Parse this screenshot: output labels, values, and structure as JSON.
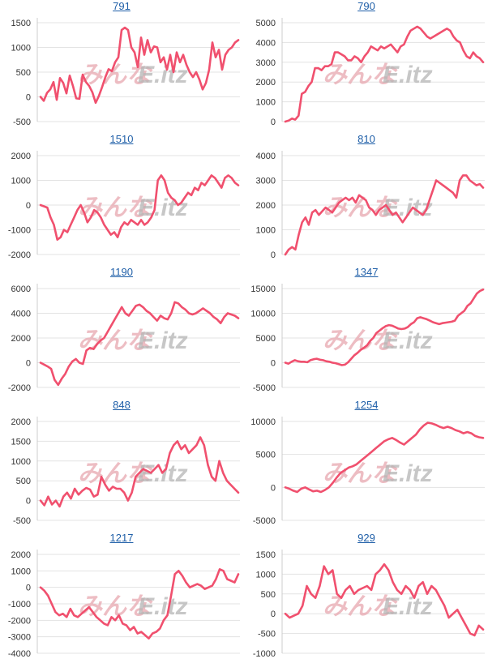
{
  "page": {
    "background": "#ffffff"
  },
  "colors": {
    "series": "#f0506e",
    "title_link": "#1f5fa8"
  },
  "watermark": {
    "part1": "みんな",
    "part2": "E.itz"
  },
  "chart_data": [
    {
      "type": "line",
      "title": "791",
      "xlabel": "",
      "ylabel": "",
      "yticks": [
        1500,
        1000,
        500,
        0,
        -500
      ],
      "ylim": [
        -500,
        1500
      ],
      "y": [
        0,
        -80,
        80,
        150,
        300,
        -60,
        380,
        280,
        70,
        430,
        220,
        -30,
        -40,
        450,
        300,
        220,
        90,
        -120,
        20,
        200,
        400,
        560,
        520,
        700,
        800,
        1350,
        1400,
        1350,
        1000,
        900,
        600,
        1200,
        850,
        1150,
        900,
        1020,
        1000,
        700,
        800,
        550,
        850,
        500,
        900,
        700,
        850,
        650,
        500,
        400,
        500,
        350,
        150,
        280,
        550,
        1100,
        800,
        950,
        550,
        850,
        950,
        1000,
        1100,
        1150
      ]
    },
    {
      "type": "line",
      "title": "790",
      "xlabel": "",
      "ylabel": "",
      "yticks": [
        5000,
        4000,
        3000,
        2000,
        1000,
        0
      ],
      "ylim": [
        0,
        5000
      ],
      "y": [
        0,
        50,
        150,
        100,
        300,
        1400,
        1500,
        1800,
        2000,
        2700,
        2700,
        2600,
        2800,
        2800,
        2900,
        3500,
        3500,
        3400,
        3300,
        3100,
        3100,
        3300,
        3200,
        3000,
        3300,
        3500,
        3800,
        3700,
        3600,
        3800,
        3700,
        3800,
        3900,
        3700,
        3500,
        3800,
        3900,
        4300,
        4600,
        4700,
        4800,
        4700,
        4500,
        4300,
        4200,
        4300,
        4400,
        4500,
        4600,
        4700,
        4600,
        4300,
        4100,
        4000,
        3600,
        3300,
        3200,
        3500,
        3300,
        3200,
        3000
      ]
    },
    {
      "type": "line",
      "title": "1510",
      "xlabel": "",
      "ylabel": "",
      "yticks": [
        2000,
        1000,
        0,
        -1000,
        -2000
      ],
      "ylim": [
        -2000,
        2000
      ],
      "y": [
        0,
        -50,
        -100,
        -500,
        -800,
        -1400,
        -1300,
        -1000,
        -1100,
        -800,
        -500,
        -200,
        0,
        -300,
        -700,
        -500,
        -200,
        -300,
        -500,
        -800,
        -1000,
        -1200,
        -1100,
        -1300,
        -900,
        -700,
        -800,
        -600,
        -700,
        -800,
        -600,
        -800,
        -700,
        -500,
        -200,
        1000,
        1200,
        1000,
        500,
        300,
        200,
        0,
        100,
        300,
        500,
        400,
        700,
        600,
        900,
        800,
        1000,
        1200,
        1100,
        900,
        700,
        1100,
        1200,
        1100,
        900,
        800
      ]
    },
    {
      "type": "line",
      "title": "810",
      "xlabel": "",
      "ylabel": "",
      "yticks": [
        4000,
        3000,
        2000,
        1000,
        0
      ],
      "ylim": [
        0,
        4000
      ],
      "y": [
        0,
        200,
        300,
        200,
        800,
        1300,
        1500,
        1200,
        1700,
        1800,
        1600,
        1750,
        1900,
        1800,
        1700,
        1900,
        2100,
        2200,
        2300,
        2200,
        2300,
        2100,
        2400,
        2300,
        2200,
        1900,
        1800,
        1600,
        1800,
        1900,
        2000,
        1800,
        1600,
        1700,
        1500,
        1300,
        1500,
        1700,
        1900,
        1800,
        1700,
        1600,
        1800,
        2200,
        2600,
        3000,
        2900,
        2800,
        2700,
        2600,
        2500,
        2300,
        3000,
        3200,
        3200,
        3000,
        2900,
        2800,
        2850,
        2700
      ]
    },
    {
      "type": "line",
      "title": "1190",
      "xlabel": "",
      "ylabel": "",
      "yticks": [
        6000,
        4000,
        2000,
        0,
        -2000
      ],
      "ylim": [
        -2000,
        6000
      ],
      "y": [
        0,
        -150,
        -300,
        -500,
        -1400,
        -1800,
        -1300,
        -900,
        -300,
        100,
        300,
        0,
        -100,
        1000,
        1200,
        1100,
        1500,
        1800,
        2000,
        2500,
        3000,
        3500,
        4000,
        4500,
        4000,
        3800,
        4200,
        4600,
        4700,
        4500,
        4200,
        4000,
        3700,
        3400,
        3800,
        3600,
        3500,
        4000,
        4900,
        4800,
        4500,
        4300,
        4000,
        3900,
        4000,
        4200,
        4400,
        4200,
        4000,
        3700,
        3500,
        3200,
        3700,
        4000,
        3900,
        3800,
        3600
      ]
    },
    {
      "type": "line",
      "title": "1347",
      "xlabel": "",
      "ylabel": "",
      "yticks": [
        15000,
        10000,
        5000,
        0,
        -5000
      ],
      "ylim": [
        -5000,
        15000
      ],
      "y": [
        0,
        -200,
        200,
        500,
        300,
        200,
        200,
        100,
        500,
        700,
        800,
        600,
        500,
        300,
        200,
        0,
        -100,
        -300,
        -500,
        -400,
        100,
        800,
        1500,
        2000,
        2600,
        3000,
        3500,
        4400,
        5000,
        6000,
        6500,
        7000,
        7400,
        7600,
        7500,
        7200,
        6900,
        6800,
        6900,
        7200,
        7800,
        8200,
        9000,
        9200,
        9000,
        8800,
        8500,
        8200,
        8000,
        7800,
        8000,
        8100,
        8200,
        8300,
        8500,
        9500,
        10000,
        10500,
        11500,
        12000,
        13000,
        14000,
        14500,
        14800
      ]
    },
    {
      "type": "line",
      "title": "848",
      "xlabel": "",
      "ylabel": "",
      "yticks": [
        2000,
        1500,
        1000,
        500,
        0,
        -500
      ],
      "ylim": [
        -500,
        2000
      ],
      "y": [
        0,
        -120,
        100,
        -100,
        0,
        -150,
        100,
        200,
        50,
        300,
        150,
        250,
        320,
        280,
        100,
        150,
        600,
        400,
        250,
        350,
        300,
        300,
        200,
        0,
        200,
        600,
        700,
        800,
        750,
        700,
        800,
        900,
        700,
        800,
        1200,
        1400,
        1500,
        1300,
        1400,
        1200,
        1300,
        1400,
        1600,
        1400,
        900,
        600,
        500,
        1000,
        700,
        500,
        400,
        300,
        200
      ]
    },
    {
      "type": "line",
      "title": "1254",
      "xlabel": "",
      "ylabel": "",
      "yticks": [
        10000,
        5000,
        0,
        -5000
      ],
      "ylim": [
        -5000,
        10000
      ],
      "y": [
        0,
        -200,
        -500,
        -700,
        -200,
        0,
        -300,
        -600,
        -500,
        -700,
        -400,
        0,
        700,
        1500,
        2200,
        2600,
        3000,
        3200,
        3500,
        4000,
        4500,
        5000,
        5500,
        6000,
        6500,
        7000,
        7300,
        7500,
        7200,
        6800,
        6500,
        7000,
        7500,
        8000,
        8800,
        9400,
        9800,
        9700,
        9500,
        9200,
        9000,
        9200,
        9000,
        8700,
        8500,
        8200,
        8400,
        8200,
        7800,
        7600,
        7500
      ]
    },
    {
      "type": "line",
      "title": "1217",
      "xlabel": "",
      "ylabel": "",
      "yticks": [
        2000,
        1000,
        0,
        -1000,
        -2000,
        -3000,
        -4000
      ],
      "ylim": [
        -4000,
        2000
      ],
      "y": [
        0,
        -200,
        -500,
        -1000,
        -1500,
        -1700,
        -1600,
        -1800,
        -1300,
        -1700,
        -1800,
        -1600,
        -1400,
        -1200,
        -1500,
        -1800,
        -2000,
        -2200,
        -2300,
        -1800,
        -2000,
        -1700,
        -2200,
        -2300,
        -2600,
        -2400,
        -2800,
        -2700,
        -2900,
        -3100,
        -2800,
        -2700,
        -2500,
        -2000,
        -1700,
        -500,
        800,
        1000,
        700,
        300,
        0,
        100,
        200,
        100,
        -100,
        0,
        100,
        500,
        1100,
        1000,
        500,
        400,
        300,
        800
      ]
    },
    {
      "type": "line",
      "title": "929",
      "xlabel": "",
      "ylabel": "",
      "yticks": [
        1500,
        1000,
        500,
        0,
        -500,
        -1000
      ],
      "ylim": [
        -1000,
        1500
      ],
      "y": [
        0,
        -100,
        -50,
        0,
        200,
        700,
        500,
        400,
        700,
        1200,
        1000,
        1100,
        500,
        400,
        600,
        700,
        500,
        600,
        650,
        700,
        600,
        1000,
        1100,
        1250,
        1100,
        800,
        600,
        500,
        700,
        600,
        400,
        700,
        800,
        500,
        700,
        600,
        400,
        200,
        -100,
        0,
        100,
        -100,
        -300,
        -500,
        -550,
        -300,
        -400
      ]
    }
  ]
}
